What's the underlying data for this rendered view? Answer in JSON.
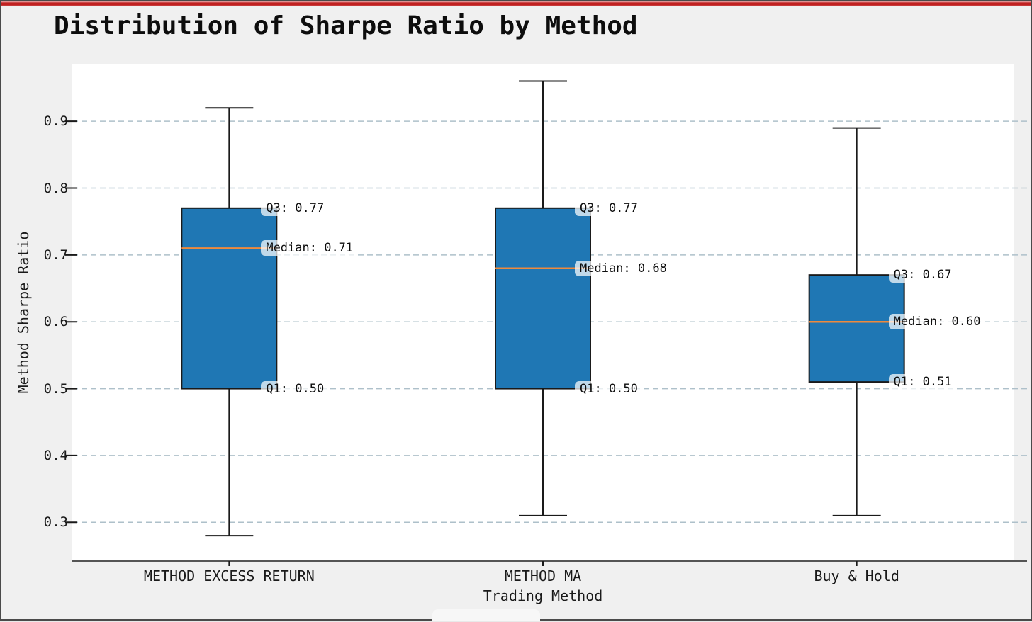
{
  "window": {
    "accent_color": "#c02020",
    "background_color": "#f0f0f0",
    "border_color": "#4a4a4a"
  },
  "title": "Distribution of Sharpe Ratio by Method",
  "chart_data": {
    "type": "box",
    "title": "Distribution of Sharpe Ratio by Method",
    "xlabel": "Trading Method",
    "ylabel": "Method Sharpe Ratio",
    "ylim": [
      0.242,
      0.986
    ],
    "grid": "horizontal-dashed",
    "legend": "none",
    "yticks": [
      {
        "value": 0.3,
        "label": "0.3"
      },
      {
        "value": 0.4,
        "label": "0.4"
      },
      {
        "value": 0.5,
        "label": "0.5"
      },
      {
        "value": 0.6,
        "label": "0.6"
      },
      {
        "value": 0.7,
        "label": "0.7"
      },
      {
        "value": 0.8,
        "label": "0.8"
      },
      {
        "value": 0.9,
        "label": "0.9"
      }
    ],
    "categories": [
      "METHOD_EXCESS_RETURN",
      "METHOD_MA",
      "Buy & Hold"
    ],
    "series": [
      {
        "name": "METHOD_EXCESS_RETURN",
        "stats": {
          "whisker_low": 0.28,
          "q1": 0.5,
          "median": 0.71,
          "q3": 0.77,
          "whisker_high": 0.92
        },
        "annotations": [
          {
            "anchor": "q3",
            "text": "Q3: 0.77"
          },
          {
            "anchor": "median",
            "text": "Median: 0.71"
          },
          {
            "anchor": "q1",
            "text": "Q1: 0.50"
          }
        ]
      },
      {
        "name": "METHOD_MA",
        "stats": {
          "whisker_low": 0.31,
          "q1": 0.5,
          "median": 0.68,
          "q3": 0.77,
          "whisker_high": 0.96
        },
        "annotations": [
          {
            "anchor": "q3",
            "text": "Q3: 0.77"
          },
          {
            "anchor": "median",
            "text": "Median: 0.68"
          },
          {
            "anchor": "q1",
            "text": "Q1: 0.50"
          }
        ]
      },
      {
        "name": "Buy & Hold",
        "stats": {
          "whisker_low": 0.31,
          "q1": 0.51,
          "median": 0.6,
          "q3": 0.67,
          "whisker_high": 0.89
        },
        "annotations": [
          {
            "anchor": "q3",
            "text": "Q3: 0.67"
          },
          {
            "anchor": "median",
            "text": "Median: 0.60"
          },
          {
            "anchor": "q1",
            "text": "Q1: 0.51"
          }
        ]
      }
    ],
    "colors": {
      "box_fill": "#1f77b4",
      "box_edge": "#1a1a1a",
      "median_line": "#ee8a3d",
      "whisker": "#1a1a1a",
      "grid_line": "#aec0ca",
      "axis_line": "#555555",
      "plot_background": "#ffffff",
      "annotation_background": "rgba(255,255,255,0.72)"
    }
  }
}
